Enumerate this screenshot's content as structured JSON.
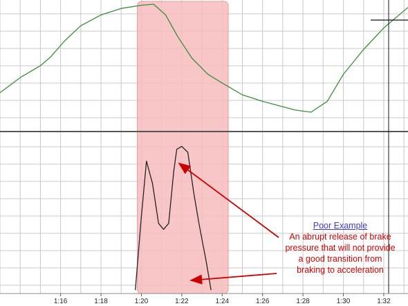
{
  "chart_data": {
    "type": "line",
    "x_ticks": [
      "1:16",
      "1:18",
      "1:20",
      "1:22",
      "1:24",
      "1:26",
      "1:28",
      "1:30",
      "1:32"
    ],
    "xlim": [
      73.0,
      93.2
    ],
    "highlight_range": [
      79.8,
      84.3
    ],
    "colors": {
      "top_series": "#3a8c3a",
      "bottom_series": "#222222",
      "highlight": "#f7bcbc",
      "grid": "#c8c8c8",
      "arrow": "#cc0000"
    },
    "panels": [
      {
        "name": "top",
        "series": [
          {
            "x": [
              73.0,
              74.0,
              75.0,
              75.5,
              76.2,
              77.0,
              78.0,
              79.0,
              80.0,
              80.6,
              81.2,
              81.8,
              82.5,
              83.3,
              84.0,
              85.0,
              86.0,
              86.8,
              87.6,
              88.4,
              89.2,
              90.0,
              91.0,
              92.0,
              93.2
            ],
            "y": [
              0.18,
              0.32,
              0.43,
              0.51,
              0.66,
              0.8,
              0.9,
              0.96,
              0.99,
              1.0,
              0.9,
              0.7,
              0.5,
              0.35,
              0.27,
              0.16,
              0.1,
              0.06,
              0.02,
              0.0,
              0.1,
              0.35,
              0.58,
              0.78,
              0.97
            ]
          }
        ]
      },
      {
        "name": "bottom",
        "series": [
          {
            "x": [
              79.7,
              80.0,
              80.25,
              80.55,
              80.85,
              81.1,
              81.35,
              81.6,
              81.75,
              82.0,
              82.3,
              82.6,
              82.85,
              83.2,
              83.45
            ],
            "y": [
              0.0,
              0.5,
              0.87,
              0.72,
              0.45,
              0.41,
              0.45,
              0.8,
              0.95,
              0.97,
              0.93,
              0.65,
              0.45,
              0.2,
              0.0
            ]
          }
        ]
      }
    ]
  },
  "annotation": {
    "title": "Poor Example",
    "lines": [
      "An abrupt release of brake",
      "pressure that will not provide",
      "a good transition from",
      "braking to acceleration"
    ]
  }
}
